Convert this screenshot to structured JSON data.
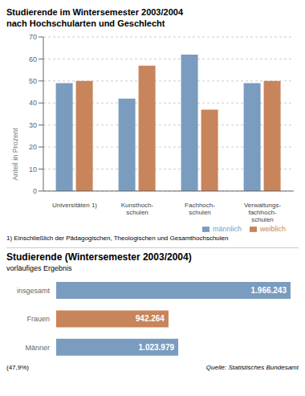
{
  "chart_data": [
    {
      "type": "bar",
      "title": "Studierende im Wintersemester 2003/2004",
      "subtitle": "nach Hochschularten und Geschlecht",
      "categories": [
        "Universitäten 1)",
        "Kunsthoch-\nschulen",
        "Fachhoch-\nschulen",
        "Verwaltungs-\nfachhoch-\nschulen"
      ],
      "series": [
        {
          "name": "männlich",
          "color": "#7a9cbf",
          "values": [
            49,
            42,
            62,
            49
          ]
        },
        {
          "name": "weiblich",
          "color": "#c8845a",
          "values": [
            50,
            57,
            37,
            50
          ]
        }
      ],
      "y_label": "Anteil in Prozent",
      "ylim": [
        0,
        70
      ],
      "yticks": [
        0,
        10,
        20,
        30,
        40,
        50,
        60,
        70
      ],
      "grid": true,
      "legend": "lower right",
      "annotations": [
        "1) Einschließlich der Pädagogischen, Theologischen und Gesamthochschulen"
      ]
    },
    {
      "type": "bar",
      "orientation": "horizontal",
      "title": "Studierende (Wintersemester 2003/2004)",
      "subtitle": "vorläufiges Ergebnis",
      "categories": [
        "insgesamt",
        "Frauen",
        "Männer"
      ],
      "values": [
        1966243,
        942264,
        1023979
      ],
      "value_labels": [
        "1.966.243",
        "942.264",
        "1.023.979"
      ],
      "colors": [
        "#7a9cbf",
        "#c8845a",
        "#7a9cbf"
      ],
      "xlim": [
        0,
        1966243
      ],
      "data_labels": true,
      "tick_labels": "y",
      "grid": false,
      "annotations": [
        "(47,9%)",
        "Quelle: Statistisches Bundesamt"
      ]
    }
  ]
}
